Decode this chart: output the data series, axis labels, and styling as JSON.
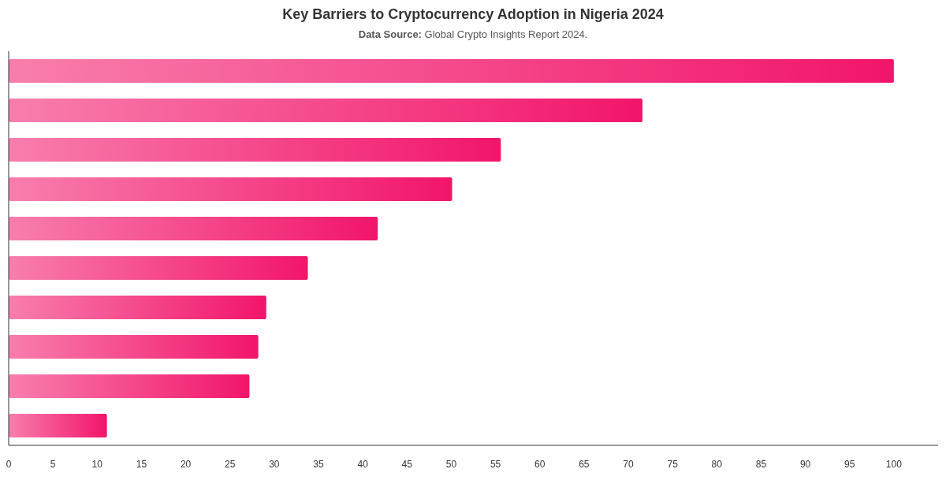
{
  "chart_data": {
    "type": "bar",
    "orientation": "horizontal",
    "title": "Key Barriers to Cryptocurrency Adoption in Nigeria 2024",
    "subtitle": "Data Source: Global Crypto Insights Report 2024.",
    "categories": [
      null,
      null,
      null,
      null,
      null,
      null,
      null,
      null,
      null,
      null
    ],
    "values": [
      100,
      71.6,
      55.6,
      50.1,
      41.7,
      33.8,
      29.1,
      28.2,
      27.2,
      11.1
    ],
    "color": "#f2156a",
    "xlim": [
      0,
      105
    ],
    "xticks": [
      0,
      5,
      10,
      15,
      20,
      25,
      30,
      35,
      40,
      45,
      50,
      55,
      60,
      65,
      70,
      75,
      80,
      85,
      90,
      95,
      100
    ],
    "grid": false
  }
}
